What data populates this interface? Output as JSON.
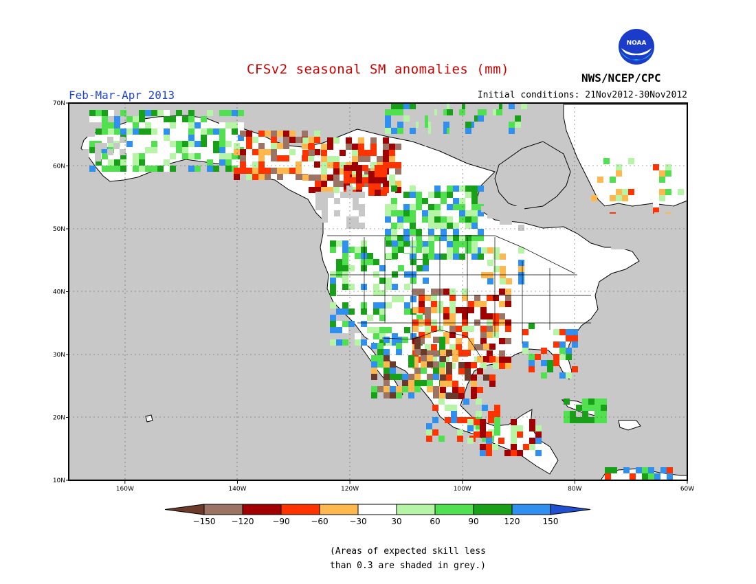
{
  "title": "CFSv2 seasonal SM anomalies (mm)",
  "period": "Feb-Mar-Apr 2013",
  "initial_conditions": "Initial conditions: 21Nov2012-30Nov2012",
  "agency": "NWS/NCEP/CPC",
  "logo_text": "NOAA",
  "map": {
    "region": "North America",
    "projection": "lat-lon",
    "lon_range": [
      -170,
      -60
    ],
    "lat_range": [
      10,
      70
    ],
    "ocean_color": "#c8c8c8",
    "land_color": "#ffffff",
    "lat_labels": [
      "70N",
      "60N",
      "50N",
      "40N",
      "30N",
      "20N",
      "10N"
    ],
    "lat_values": [
      70,
      60,
      50,
      40,
      30,
      20,
      10
    ],
    "lon_labels": [
      "160W",
      "140W",
      "120W",
      "100W",
      "80W",
      "60W"
    ],
    "lon_values": [
      -160,
      -140,
      -120,
      -100,
      -80,
      -60
    ]
  },
  "colorbar": {
    "labels": [
      "-150",
      "-120",
      "-90",
      "-60",
      "-30",
      "30",
      "60",
      "90",
      "120",
      "150"
    ],
    "colors": [
      "#6b3a2a",
      "#9c7466",
      "#a00000",
      "#ff3300",
      "#ffb84d",
      "#ffffff",
      "#b6f5a6",
      "#50e050",
      "#18a018",
      "#3090f0",
      "#2050d0"
    ]
  },
  "note_line1": "(Areas of expected skill less",
  "note_line2": "than 0.3 are shaded in grey.)"
}
